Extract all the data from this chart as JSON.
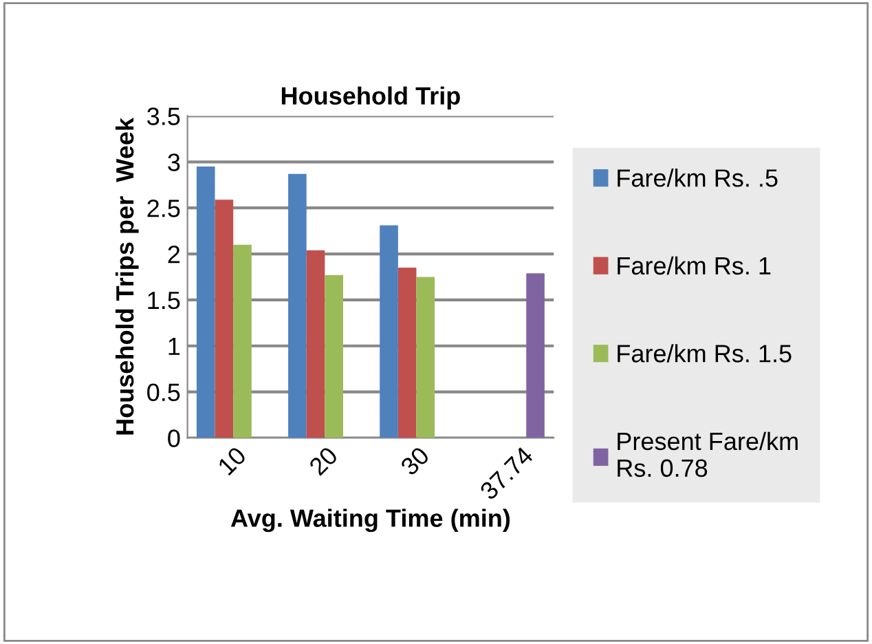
{
  "chart_data": {
    "type": "bar",
    "title": "Household Trip",
    "xlabel": "Avg. Waiting Time (min)",
    "ylabel": "Household Trips per  Week",
    "categories": [
      "10",
      "20",
      "30",
      "37.74"
    ],
    "series": [
      {
        "name": "Fare/km Rs. .5",
        "color": "#4f81bd",
        "values": [
          2.95,
          2.87,
          2.31,
          null
        ]
      },
      {
        "name": "Fare/km Rs. 1",
        "color": "#c0504d",
        "values": [
          2.59,
          2.04,
          1.85,
          null
        ]
      },
      {
        "name": "Fare/km Rs. 1.5",
        "color": "#9bbb59",
        "values": [
          2.1,
          1.77,
          1.75,
          null
        ]
      },
      {
        "name": "Present Fare/km\nRs. 0.78",
        "color": "#8064a2",
        "values": [
          null,
          null,
          null,
          1.79
        ]
      }
    ],
    "ylim": [
      0,
      3.5
    ],
    "yticks": [
      0,
      0.5,
      1,
      1.5,
      2,
      2.5,
      3,
      3.5
    ],
    "grid": "y",
    "legend": "right"
  }
}
